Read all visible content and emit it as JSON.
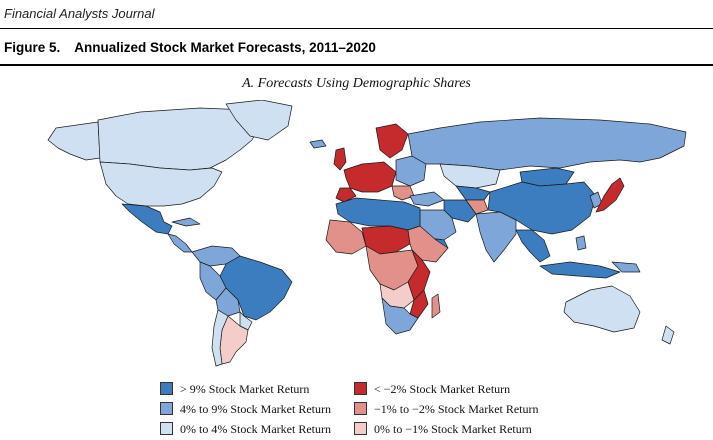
{
  "header": {
    "journal": "Financial Analysts Journal",
    "figure_number": "Figure 5.",
    "figure_title": "Annualized Stock Market Forecasts, 2011–2020",
    "panel_title": "A. Forecasts Using Demographic Shares"
  },
  "colors": {
    "ocean": "#ffffff",
    "border": "#1a1a1a",
    "gt9": "#3c7dbf",
    "4to9": "#7fa6d8",
    "0to4": "#cfe0f2",
    "ltm2": "#c52a2c",
    "m1tom2": "#e2908a",
    "0tom1": "#f4cdca"
  },
  "legend": [
    {
      "label": "> 9% Stock Market Return",
      "color": "#3c7dbf"
    },
    {
      "label": "4% to 9% Stock Market Return",
      "color": "#7fa6d8"
    },
    {
      "label": "0% to 4% Stock Market Return",
      "color": "#cfe0f2"
    },
    {
      "label": "< −2% Stock Market Return",
      "color": "#c52a2c"
    },
    {
      "label": "−1% to −2% Stock Market Return",
      "color": "#e2908a"
    },
    {
      "label": "0% to −1% Stock Market Return",
      "color": "#f4cdca"
    }
  ]
}
